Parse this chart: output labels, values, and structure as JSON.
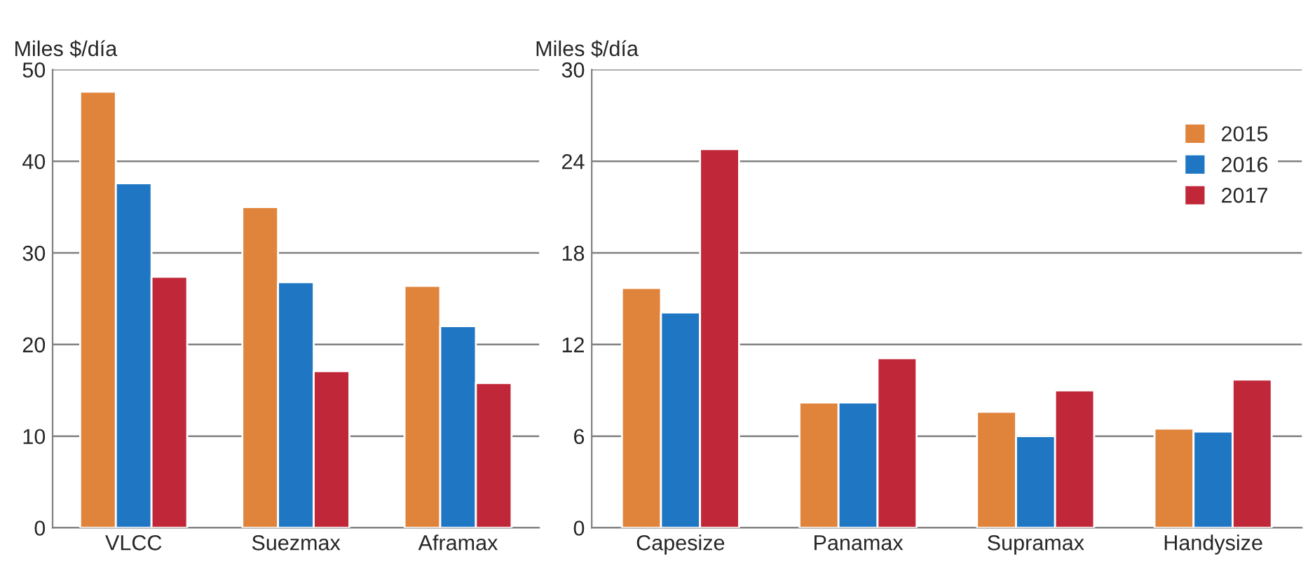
{
  "chart_data": [
    {
      "type": "bar",
      "ylabel": "Miles $/día",
      "categories": [
        "VLCC",
        "Suezmax",
        "Aframax"
      ],
      "ylim": [
        0,
        50
      ],
      "yticks": [
        0,
        10,
        20,
        30,
        40,
        50
      ],
      "grid": "y",
      "legend": false,
      "series": [
        {
          "color": "#e0843c",
          "values": [
            47.6,
            35.0,
            26.4
          ]
        },
        {
          "color": "#1f77c4",
          "values": [
            37.6,
            26.8,
            22.0
          ]
        },
        {
          "color": "#c0283a",
          "values": [
            27.4,
            17.1,
            15.8
          ]
        }
      ]
    },
    {
      "type": "bar",
      "ylabel": "Miles $/día",
      "categories": [
        "Capesize",
        "Panamax",
        "Supramax",
        "Handysize"
      ],
      "ylim": [
        0,
        30
      ],
      "yticks": [
        0,
        6,
        12,
        18,
        24,
        30
      ],
      "grid": "y",
      "legend": "top right",
      "series": [
        {
          "name": "2015",
          "color": "#e0843c",
          "values": [
            15.7,
            8.2,
            7.6,
            6.5
          ]
        },
        {
          "name": "2016",
          "color": "#1f77c4",
          "values": [
            14.1,
            8.2,
            6.0,
            6.3
          ]
        },
        {
          "name": "2017",
          "color": "#c0283a",
          "values": [
            24.8,
            11.1,
            9.0,
            9.7
          ]
        }
      ]
    }
  ]
}
